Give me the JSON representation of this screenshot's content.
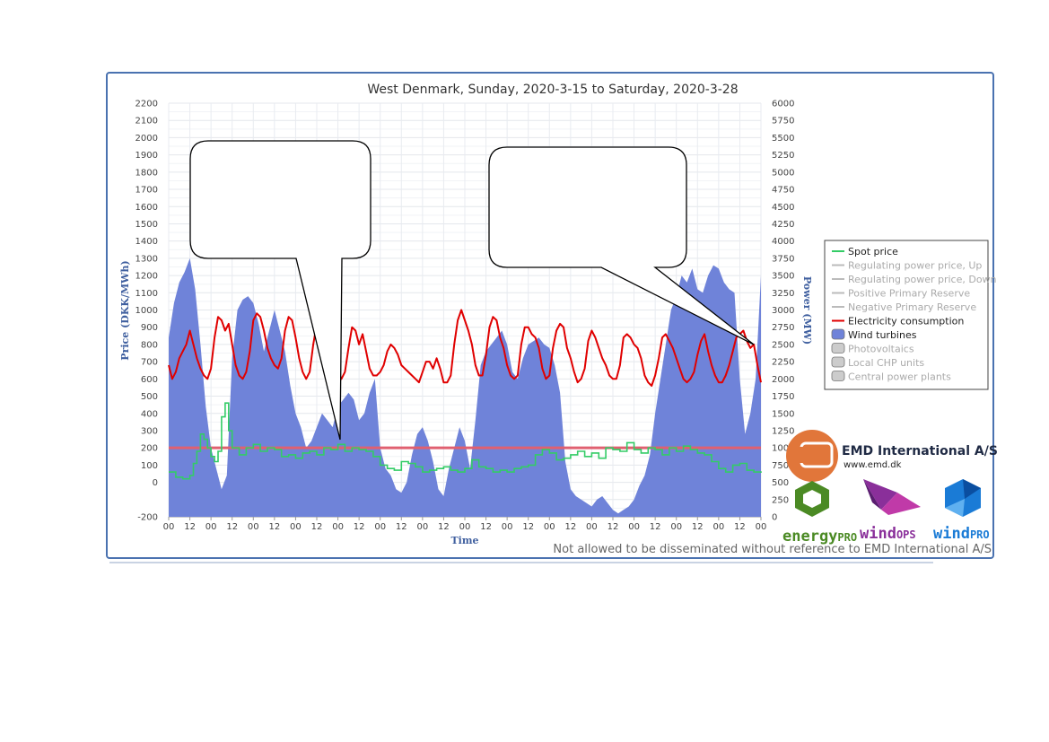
{
  "chart_data": {
    "type": "area",
    "title": "West Denmark, Sunday, 2020-3-15 to Saturday, 2020-3-28",
    "xlabel": "Time",
    "ylabel_left": "Price (DKK/MWh)",
    "ylabel_right": "Power (MW)",
    "ylim_left": [
      -200,
      2200
    ],
    "ylim_right": [
      0,
      6000
    ],
    "left_ticks": [
      "2200",
      "2100",
      "2000",
      "1900",
      "1800",
      "1700",
      "1600",
      "1500",
      "1400",
      "1300",
      "1200",
      "1100",
      "1000",
      "900",
      "800",
      "700",
      "600",
      "500",
      "400",
      "300",
      "200",
      "100",
      "0",
      "-200"
    ],
    "right_ticks": [
      "6000",
      "5750",
      "5500",
      "5250",
      "5000",
      "4750",
      "4500",
      "4250",
      "4000",
      "3750",
      "3500",
      "3250",
      "3000",
      "2750",
      "2500",
      "2250",
      "2000",
      "1750",
      "1500",
      "1250",
      "1000",
      "750",
      "500",
      "250",
      "0"
    ],
    "x_ticks": [
      "00",
      "12",
      "00",
      "12",
      "00",
      "12",
      "00",
      "12",
      "00",
      "12",
      "00",
      "12",
      "00",
      "12",
      "00",
      "12",
      "00",
      "12",
      "00",
      "12",
      "00",
      "12",
      "00",
      "12",
      "00",
      "12",
      "00",
      "12",
      "00"
    ],
    "hours_per_step": 12,
    "reference_line_price": 200,
    "series": [
      {
        "name": "Wind turbines",
        "axis": "right",
        "kind": "area",
        "x_hours": [
          0,
          3,
          6,
          9,
          12,
          15,
          18,
          21,
          24,
          27,
          30,
          33,
          36,
          39,
          42,
          45,
          48,
          51,
          54,
          57,
          60,
          63,
          66,
          69,
          72,
          75,
          78,
          81,
          84,
          87,
          90,
          93,
          96,
          99,
          102,
          105,
          108,
          111,
          114,
          117,
          120,
          123,
          126,
          129,
          132,
          135,
          138,
          141,
          144,
          147,
          150,
          153,
          156,
          159,
          162,
          165,
          168,
          171,
          174,
          177,
          180,
          183,
          186,
          189,
          192,
          195,
          198,
          201,
          204,
          207,
          210,
          213,
          216,
          219,
          222,
          225,
          228,
          231,
          234,
          237,
          240,
          243,
          246,
          249,
          252,
          255,
          258,
          261,
          264,
          267,
          270,
          273,
          276,
          279,
          282,
          285,
          288,
          291,
          294,
          297,
          300,
          303,
          306,
          309,
          312,
          315,
          318,
          321,
          324,
          327,
          330,
          333,
          336
        ],
        "values": [
          2600,
          3100,
          3400,
          3550,
          3750,
          3300,
          2500,
          1600,
          1000,
          700,
          400,
          600,
          2300,
          3000,
          3150,
          3200,
          3100,
          2800,
          2400,
          2700,
          3000,
          2700,
          2400,
          1900,
          1500,
          1300,
          1000,
          1100,
          1300,
          1500,
          1400,
          1300,
          1600,
          1700,
          1800,
          1700,
          1400,
          1500,
          1800,
          2000,
          1000,
          700,
          600,
          400,
          350,
          500,
          900,
          1200,
          1300,
          1100,
          800,
          400,
          300,
          700,
          1000,
          1300,
          1100,
          700,
          1400,
          2200,
          2400,
          2500,
          2600,
          2700,
          2500,
          2100,
          2000,
          2300,
          2500,
          2550,
          2600,
          2500,
          2450,
          2200,
          1800,
          800,
          400,
          300,
          250,
          200,
          150,
          250,
          300,
          200,
          100,
          50,
          100,
          150,
          250,
          450,
          600,
          900,
          1500,
          2000,
          2500,
          3000,
          3200,
          3500,
          3400,
          3600,
          3300,
          3250,
          3500,
          3650,
          3600,
          3400,
          3300,
          3250,
          2000,
          1200,
          1500,
          2000,
          3500
        ]
      },
      {
        "name": "Electricity consumption",
        "axis": "right",
        "kind": "line",
        "x_hours": [
          0,
          2,
          4,
          6,
          8,
          10,
          12,
          14,
          16,
          18,
          20,
          22,
          24,
          26,
          28,
          30,
          32,
          34,
          36,
          38,
          40,
          42,
          44,
          46,
          48,
          50,
          52,
          54,
          56,
          58,
          60,
          62,
          64,
          66,
          68,
          70,
          72,
          74,
          76,
          78,
          80,
          82,
          84,
          86,
          88,
          90,
          92,
          94,
          96,
          98,
          100,
          102,
          104,
          106,
          108,
          110,
          112,
          114,
          116,
          118,
          120,
          122,
          124,
          126,
          128,
          130,
          132,
          134,
          136,
          138,
          140,
          142,
          144,
          146,
          148,
          150,
          152,
          154,
          156,
          158,
          160,
          162,
          164,
          166,
          168,
          170,
          172,
          174,
          176,
          178,
          180,
          182,
          184,
          186,
          188,
          190,
          192,
          194,
          196,
          198,
          200,
          202,
          204,
          206,
          208,
          210,
          212,
          214,
          216,
          218,
          220,
          222,
          224,
          226,
          228,
          230,
          232,
          234,
          236,
          238,
          240,
          242,
          244,
          246,
          248,
          250,
          252,
          254,
          256,
          258,
          260,
          262,
          264,
          266,
          268,
          270,
          272,
          274,
          276,
          278,
          280,
          282,
          284,
          286,
          288,
          290,
          292,
          294,
          296,
          298,
          300,
          302,
          304,
          306,
          308,
          310,
          312,
          314,
          316,
          318,
          320,
          322,
          324,
          326,
          328,
          330,
          332,
          334,
          336
        ],
        "values": [
          2200,
          2000,
          2100,
          2300,
          2400,
          2500,
          2700,
          2500,
          2300,
          2150,
          2050,
          2000,
          2150,
          2600,
          2900,
          2850,
          2700,
          2800,
          2500,
          2200,
          2050,
          2000,
          2100,
          2400,
          2850,
          2950,
          2900,
          2700,
          2450,
          2300,
          2200,
          2150,
          2300,
          2700,
          2900,
          2850,
          2600,
          2300,
          2100,
          2000,
          2100,
          2500,
          2800,
          2750,
          2650,
          2800,
          2450,
          2200,
          2100,
          2000,
          2100,
          2450,
          2750,
          2700,
          2500,
          2650,
          2400,
          2150,
          2050,
          2050,
          2100,
          2200,
          2400,
          2500,
          2450,
          2350,
          2200,
          2150,
          2100,
          2050,
          2000,
          1950,
          2100,
          2250,
          2250,
          2150,
          2300,
          2150,
          1950,
          1950,
          2050,
          2500,
          2850,
          3000,
          2850,
          2700,
          2500,
          2200,
          2050,
          2050,
          2350,
          2750,
          2900,
          2850,
          2600,
          2450,
          2200,
          2050,
          2000,
          2050,
          2500,
          2750,
          2750,
          2650,
          2600,
          2450,
          2150,
          2000,
          2050,
          2450,
          2700,
          2800,
          2750,
          2450,
          2300,
          2100,
          1950,
          2000,
          2150,
          2550,
          2700,
          2600,
          2450,
          2300,
          2200,
          2050,
          2000,
          2000,
          2200,
          2600,
          2650,
          2600,
          2500,
          2450,
          2300,
          2050,
          1950,
          1900,
          2050,
          2300,
          2600,
          2650,
          2550,
          2450,
          2300,
          2150,
          2000,
          1950,
          2000,
          2100,
          2350,
          2550,
          2650,
          2400,
          2200,
          2050,
          1950,
          1950,
          2050,
          2200,
          2400,
          2600,
          2650,
          2700,
          2550,
          2450,
          2500,
          2200,
          1950
        ]
      },
      {
        "name": "Spot price",
        "axis": "left",
        "kind": "line",
        "x_hours": [
          0,
          4,
          8,
          12,
          14,
          16,
          18,
          20,
          22,
          24,
          26,
          28,
          30,
          32,
          34,
          36,
          40,
          44,
          48,
          52,
          56,
          60,
          64,
          68,
          72,
          76,
          80,
          84,
          88,
          92,
          96,
          100,
          104,
          108,
          112,
          116,
          120,
          124,
          128,
          132,
          136,
          140,
          144,
          148,
          152,
          156,
          160,
          164,
          168,
          172,
          176,
          180,
          184,
          188,
          192,
          196,
          200,
          204,
          208,
          212,
          216,
          220,
          224,
          228,
          232,
          236,
          240,
          244,
          248,
          252,
          256,
          260,
          264,
          268,
          272,
          276,
          280,
          284,
          288,
          292,
          296,
          300,
          304,
          308,
          312,
          316,
          320,
          324,
          328,
          332,
          336
        ],
        "values": [
          60,
          30,
          20,
          40,
          110,
          180,
          280,
          250,
          200,
          150,
          120,
          180,
          380,
          460,
          300,
          200,
          160,
          200,
          220,
          180,
          200,
          190,
          150,
          160,
          140,
          170,
          180,
          160,
          200,
          190,
          220,
          180,
          200,
          190,
          180,
          150,
          100,
          80,
          70,
          120,
          110,
          90,
          60,
          70,
          80,
          90,
          70,
          60,
          80,
          130,
          90,
          80,
          60,
          70,
          60,
          80,
          90,
          100,
          160,
          190,
          170,
          130,
          140,
          160,
          180,
          150,
          170,
          140,
          200,
          190,
          180,
          230,
          190,
          170,
          200,
          190,
          160,
          200,
          180,
          210,
          190,
          170,
          160,
          120,
          80,
          60,
          100,
          110,
          70,
          60,
          55
        ]
      },
      {
        "name": "Regulating power price, Up",
        "hidden": true
      },
      {
        "name": "Regulating power price, Down",
        "hidden": true
      },
      {
        "name": "Positive Primary Reserve",
        "hidden": true
      },
      {
        "name": "Negative Primary Reserve",
        "hidden": true
      },
      {
        "name": "Photovoltaics",
        "hidden": true
      },
      {
        "name": "Local CHP units",
        "hidden": true
      },
      {
        "name": "Central power plants",
        "hidden": true
      }
    ],
    "legend": {
      "placement": "right",
      "items": [
        {
          "label": "Spot price",
          "kind": "line",
          "color": "#33cc66",
          "active": true
        },
        {
          "label": "Regulating power price, Up",
          "kind": "line",
          "color": "#bbbbbb",
          "active": false
        },
        {
          "label": "Regulating power price, Down",
          "kind": "line",
          "color": "#bbbbbb",
          "active": false
        },
        {
          "label": "Positive Primary Reserve",
          "kind": "line",
          "color": "#bbbbbb",
          "active": false
        },
        {
          "label": "Negative Primary Reserve",
          "kind": "line",
          "color": "#bbbbbb",
          "active": false
        },
        {
          "label": "Electricity consumption",
          "kind": "line",
          "color": "#e00000",
          "active": true
        },
        {
          "label": "Wind turbines",
          "kind": "box",
          "color": "#6f83d9",
          "active": true
        },
        {
          "label": "Photovoltaics",
          "kind": "box",
          "color": "#cccccc",
          "active": false
        },
        {
          "label": "Local CHP units",
          "kind": "box",
          "color": "#cccccc",
          "active": false
        },
        {
          "label": "Central power plants",
          "kind": "box",
          "color": "#cccccc",
          "active": false
        }
      ]
    },
    "grid": true
  },
  "colors": {
    "wind": "#6f83d9",
    "consumption": "#e00000",
    "spot": "#33cc66",
    "reference": "#e06070",
    "frame": "#4a72b0",
    "emd_orange": "#e1763a",
    "energypro_green": "#4b8a24",
    "windops_purple": "#8a2f9a",
    "windpro_blue": "#1a7bd6"
  },
  "branding": {
    "company": "EMD International  A/S",
    "url": "www.emd.dk",
    "products": [
      {
        "name_main": "energy",
        "name_sub": "PRO",
        "color": "#4b8a24"
      },
      {
        "name_main": "wind",
        "name_sub": "OPS",
        "color": "#8a2f9a"
      },
      {
        "name_main": "wind",
        "name_sub": "PRO",
        "color": "#1a7bd6"
      }
    ],
    "footer": "Not allowed to be disseminated without reference to EMD International A/S"
  },
  "callouts": [
    {
      "name": "callout-left",
      "text": ""
    },
    {
      "name": "callout-right",
      "text": ""
    }
  ]
}
